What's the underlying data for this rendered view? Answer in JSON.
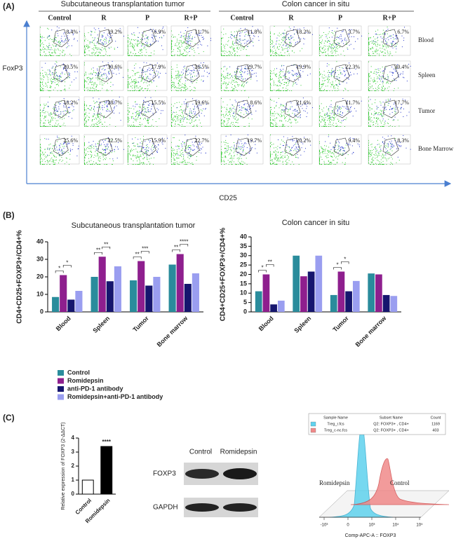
{
  "panel_a": {
    "label": "(A)",
    "groups": [
      {
        "title": "Subcutaneous transplantation tumor",
        "columns": [
          "Control",
          "R",
          "P",
          "R+P"
        ],
        "percentages": [
          [
            "8.4%",
            "19.2%",
            "6.9%",
            "11.7%"
          ],
          [
            "20.5%",
            "30.6%",
            "17.9%",
            "26.5%"
          ],
          [
            "18.2%",
            "28.7%",
            "15.5%",
            "19.6%"
          ],
          [
            "25.6%",
            "32.5%",
            "15.9%",
            "22.7%"
          ]
        ]
      },
      {
        "title": "Colon cancer in situ",
        "columns": [
          "Control",
          "R",
          "P",
          "R+P"
        ],
        "percentages": [
          [
            "11.8%",
            "18.2%",
            "3.7%",
            "6.7%"
          ],
          [
            "29.7%",
            "19.9%",
            "22.3%",
            "30.4%"
          ],
          [
            "8.6%",
            "21.6%",
            "11.7%",
            "17.7%"
          ],
          [
            "19.7%",
            "20.2%",
            "9.4%",
            "8.3%"
          ]
        ]
      }
    ],
    "rows": [
      "Blood",
      "Spleen",
      "Tumor",
      "Bone Marrow"
    ],
    "y_axis": "FoxP3",
    "x_axis": "CD25"
  },
  "panel_b_label": "(B)",
  "chart_data": [
    {
      "type": "bar",
      "title": "Subcutaneous transplantation tumor",
      "y_label": "CD4+CD25+FOXP3+/CD4+%",
      "categories": [
        "Blood",
        "Spleen",
        "Tumor",
        "Bone marrow"
      ],
      "ylim": [
        0,
        40
      ],
      "yticks": [
        0,
        10,
        20,
        30,
        40
      ],
      "series": [
        {
          "name": "Control",
          "color": "#2a8c9c",
          "values": [
            8.5,
            20,
            18,
            27
          ]
        },
        {
          "name": "Romidepsin",
          "color": "#8e1f8e",
          "values": [
            21,
            31.5,
            29,
            33
          ]
        },
        {
          "name": "anti-PD-1 antibody",
          "color": "#16166e",
          "values": [
            7,
            17.5,
            15,
            16
          ]
        },
        {
          "name": "Romidepsin+anti-PD-1 antibody",
          "color": "#9a9ef0",
          "values": [
            12,
            26,
            20,
            22
          ]
        }
      ],
      "annotations": [
        {
          "category": "Blood",
          "labels": [
            "*",
            "*"
          ]
        },
        {
          "category": "Spleen",
          "labels": [
            "**",
            "**"
          ]
        },
        {
          "category": "Tumor",
          "labels": [
            "**",
            "***"
          ]
        },
        {
          "category": "Bone marrow",
          "labels": [
            "**",
            "****"
          ]
        }
      ]
    },
    {
      "type": "bar",
      "title": "Colon cancer in situ",
      "y_label": "CD4+CD25+FOXP3+/CD4+%",
      "categories": [
        "Blood",
        "Spleen",
        "Tumor",
        "Bone marrow"
      ],
      "ylim": [
        0,
        40
      ],
      "yticks": [
        0,
        5,
        10,
        15,
        20,
        25,
        30,
        35,
        40
      ],
      "series": [
        {
          "color": "#2a8c9c",
          "values": [
            11,
            30,
            9,
            20.5
          ]
        },
        {
          "color": "#8e1f8e",
          "values": [
            20,
            19,
            21.5,
            20
          ]
        },
        {
          "color": "#16166e",
          "values": [
            4,
            21.5,
            11,
            9
          ]
        },
        {
          "color": "#9a9ef0",
          "values": [
            6,
            30,
            16.5,
            8.5
          ]
        }
      ],
      "annotations": [
        {
          "category": "Blood",
          "labels": [
            "*",
            "**"
          ]
        },
        {
          "category": "Tumor",
          "labels": [
            "*",
            "*"
          ]
        }
      ]
    },
    {
      "type": "bar",
      "y_label": "Relative expression of FOXP3 (2-ΔΔCT)",
      "categories": [
        "Control",
        "Romidepsin"
      ],
      "ylim": [
        0,
        4
      ],
      "yticks": [
        0,
        1,
        2,
        3,
        4
      ],
      "values": [
        1,
        3.4
      ],
      "colors": [
        "#ffffff",
        "#000000"
      ],
      "annotations": [
        {
          "category": "Romidepsin",
          "labels": [
            "****"
          ]
        }
      ]
    }
  ],
  "panel_c": {
    "label": "(C)",
    "blot": {
      "lanes": [
        "Control",
        "Romidepsin"
      ],
      "bands": [
        "FOXP3",
        "GAPDH"
      ]
    },
    "histogram": {
      "table": {
        "header": [
          "Sample Name",
          "Subset Name",
          "Count"
        ],
        "rows": [
          [
            "Treg_r.fcs",
            "Q2: FOXP3+ , CD4+",
            "1169"
          ],
          [
            "Treg_c-nc.fcs",
            "Q2: FOXP3+ , CD4+",
            "403"
          ]
        ]
      },
      "labels": [
        "Romidepsin",
        "Control"
      ],
      "x_label": "Comp-APC-A :: FOXP3",
      "xtick_labels": [
        "-10³",
        "0",
        "10³",
        "10⁴",
        "10⁵"
      ]
    }
  }
}
